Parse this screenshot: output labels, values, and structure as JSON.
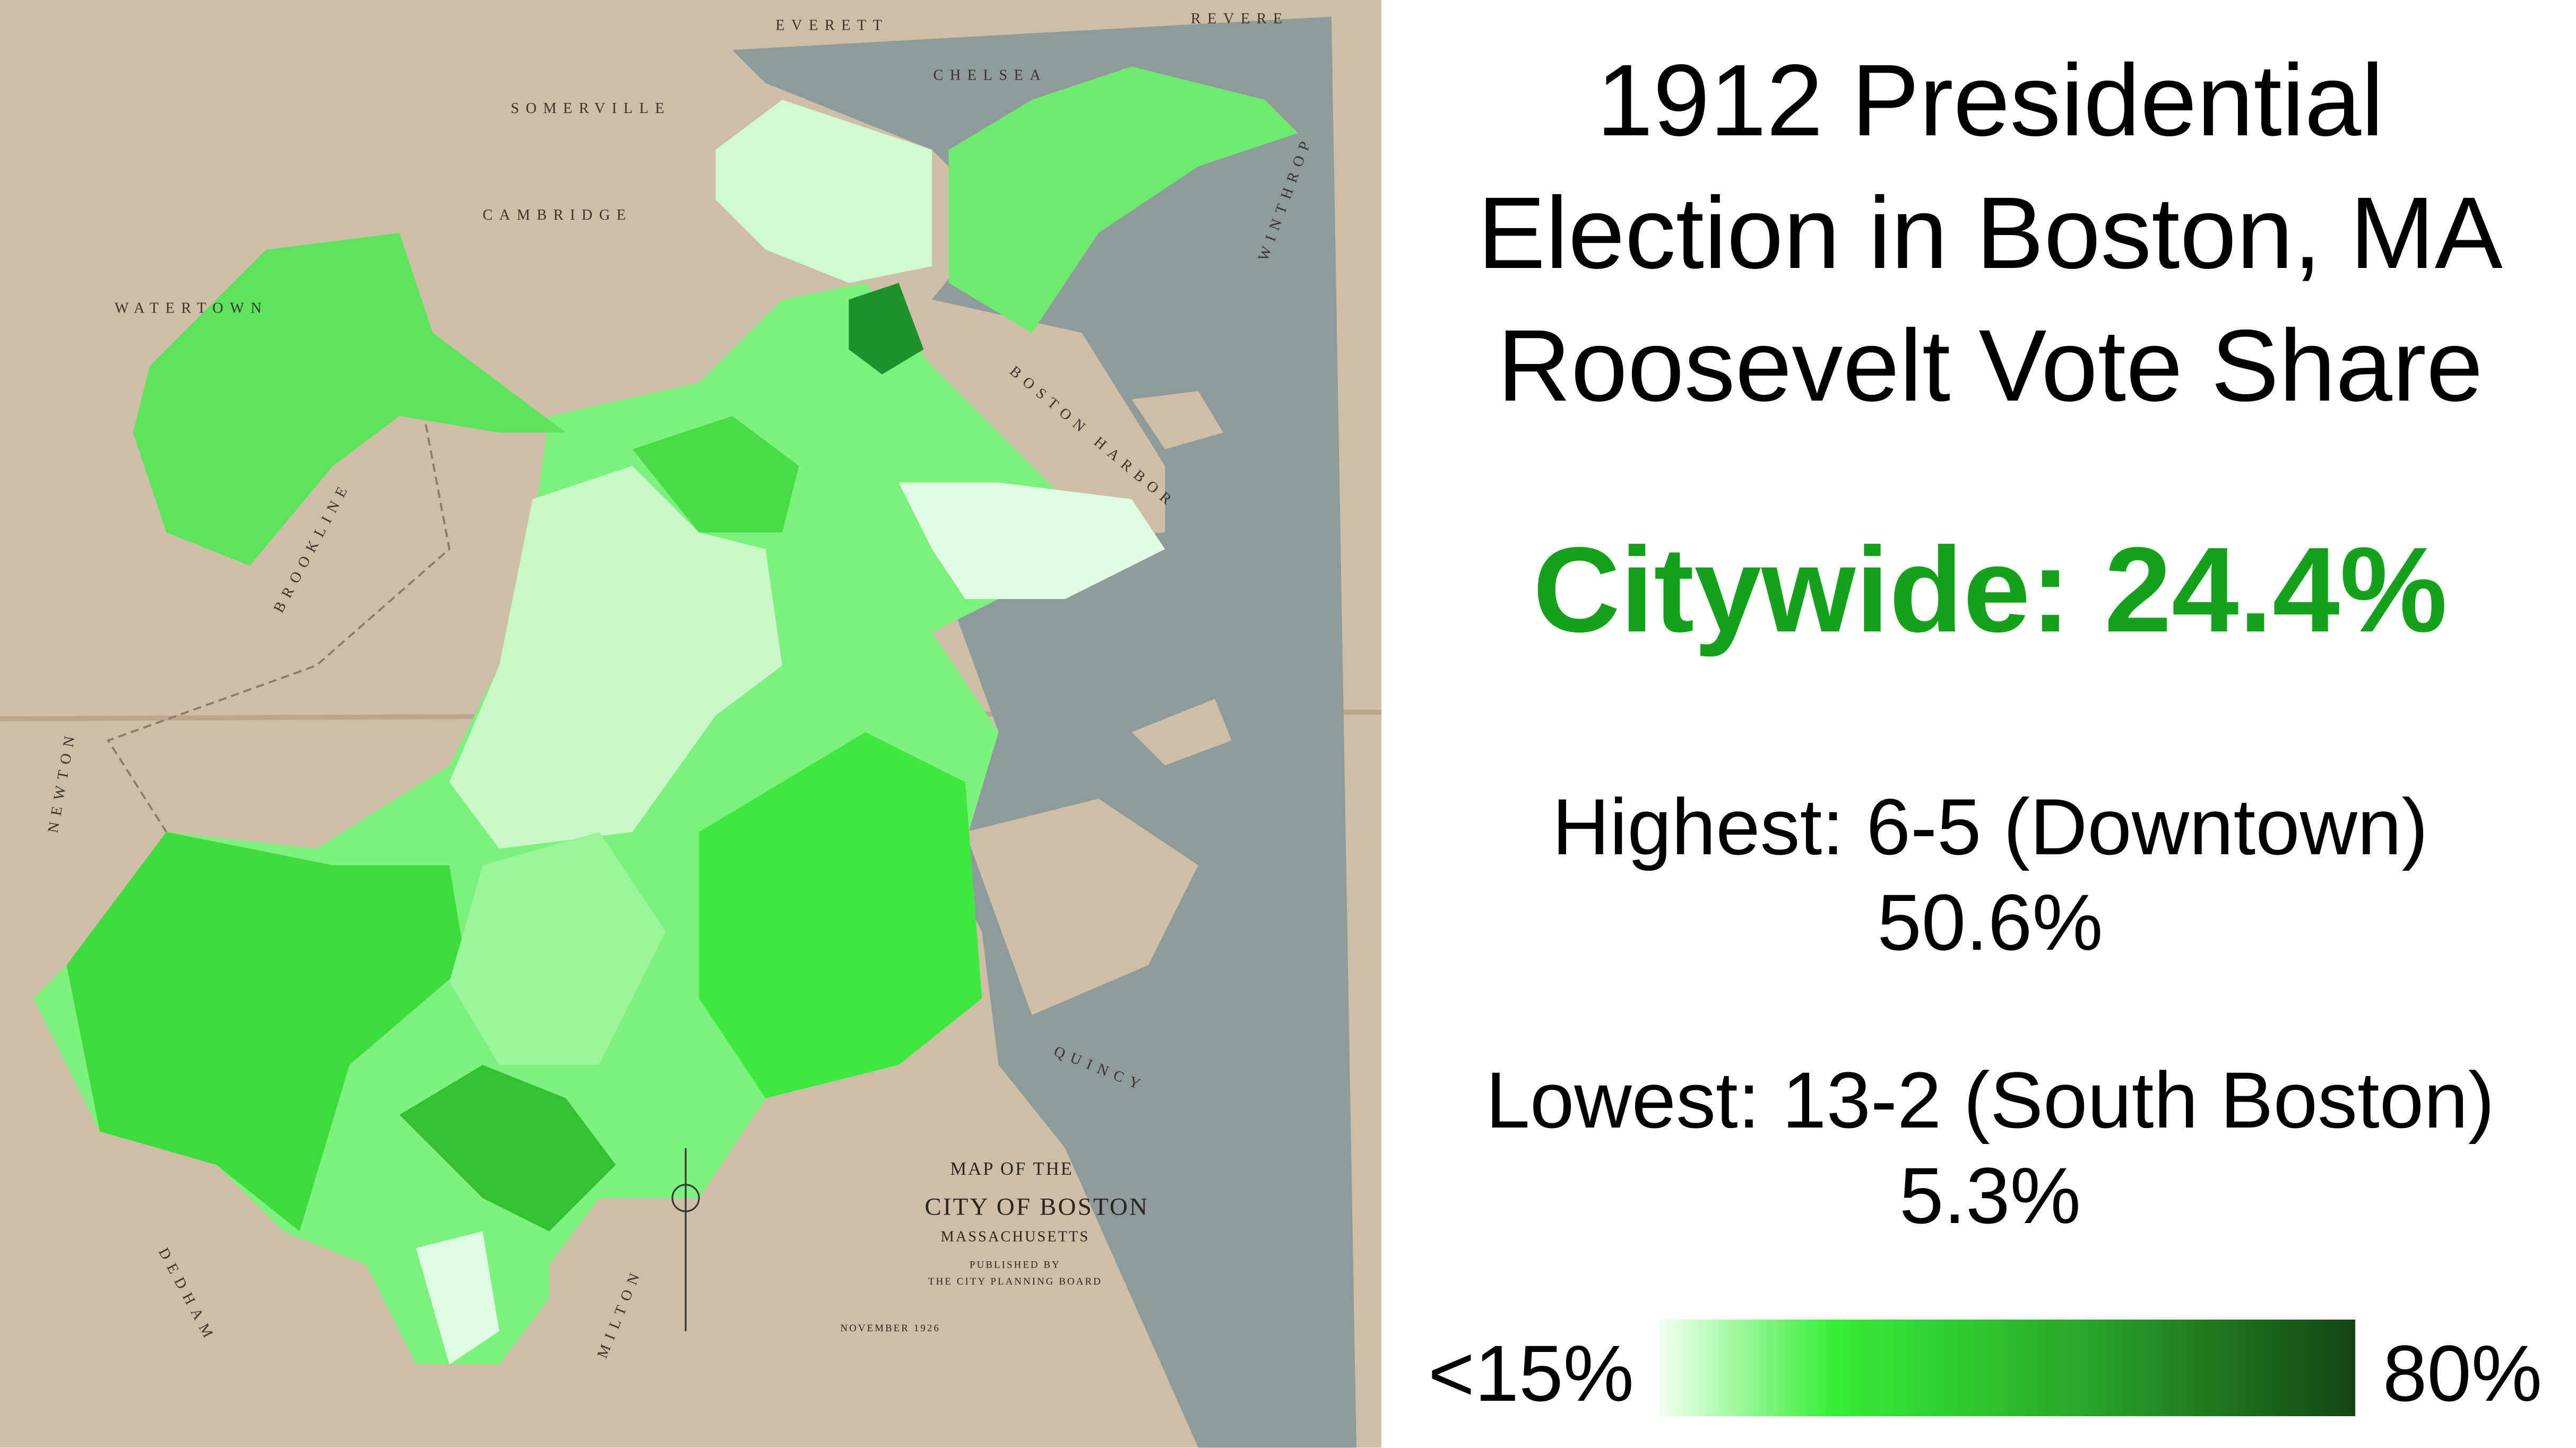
{
  "title": [
    "1912 Presidential",
    "Election in Boston, MA",
    "Roosevelt Vote Share"
  ],
  "citywide": "Citywide: 24.4%",
  "highest": {
    "label": "Highest: 6-5 (Downtown)",
    "value": "50.6%"
  },
  "lowest": {
    "label": "Lowest: 13-2 (South Boston)",
    "value": "5.3%"
  },
  "legend": {
    "min_label": "<15%",
    "max_label": "80%"
  },
  "map": {
    "labels": [
      "EVERETT",
      "REVERE",
      "CHELSEA",
      "SOMERVILLE",
      "CAMBRIDGE",
      "WATERTOWN",
      "BROOKLINE",
      "NEWTON",
      "DEDHAM",
      "MILTON",
      "QUINCY",
      "WINTHROP",
      "BOSTON HARBOR"
    ],
    "cartouche": [
      "MAP OF THE",
      "CITY OF BOSTON",
      "MASSACHUSETTS",
      "PUBLISHED BY",
      "THE CITY PLANNING BOARD",
      "NOVEMBER 1926"
    ]
  }
}
